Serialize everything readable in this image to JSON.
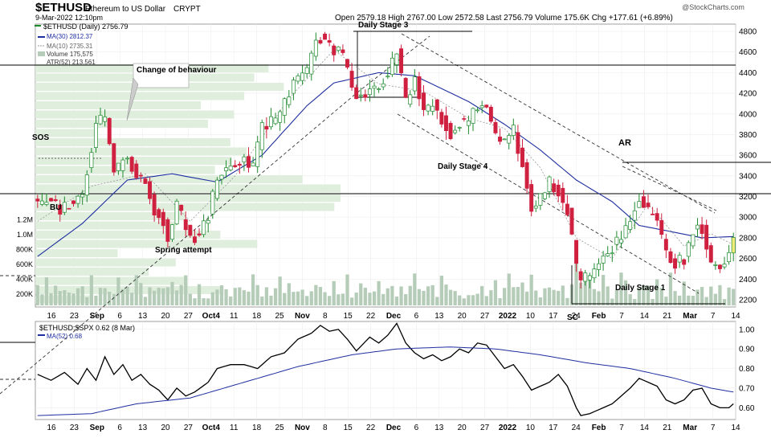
{
  "header": {
    "symbol": "$ETHUSD",
    "name": "Ethereum to US Dollar",
    "exchange": "CRYPT",
    "date": "9-Mar-2022 12:10pm",
    "ohlc": "Open 2579.18  High 2767.00  Low 2572.58  Last 2756.79  Volume 175.6K  Chg +177.61 (+6.89%)",
    "brand": "@StockCharts.com"
  },
  "legend": {
    "price": "$ETHUSD (Daily) 2756.79",
    "ma30": "MA(30) 2812.37",
    "ma10": "MA(10) 2735.31",
    "volume": "Volume 175,575",
    "atr": "ATR(52) 213.561",
    "ratio": "$ETHUSD:$SPX 0.62 (8 Mar)",
    "ratio_ma": "MA(52) 0.68"
  },
  "colors": {
    "up": "#1e8a2e",
    "down": "#d02040",
    "ma30": "#1f2fa0",
    "ma10": "#999999",
    "volume": "#b5ccb8",
    "vbp": "#dfeedd",
    "last": "#f2ec7a"
  },
  "annotations": [
    "Change of behaviour",
    "SOS",
    "BU",
    "Spring attempt",
    "Daily Stage 3",
    "Daily Stage 4",
    "AR",
    "Daily Stage 1",
    "SC"
  ],
  "chart_data": [
    {
      "type": "candlestick",
      "title": "$ETHUSD (Daily)",
      "ylim": [
        2130,
        4870
      ],
      "yticks": [
        2200,
        2400,
        2600,
        2800,
        3000,
        3200,
        3400,
        3600,
        3800,
        4000,
        4200,
        4400,
        4600,
        4800
      ],
      "volume_ticks": [
        "200K",
        "400K",
        "600K",
        "800K",
        "1.0M",
        "1.2M"
      ],
      "x_tick_labels": [
        "16",
        "23",
        "Sep",
        "6",
        "13",
        "20",
        "27",
        "Oct4",
        "11",
        "18",
        "25",
        "Nov",
        "8",
        "15",
        "22",
        "Dec",
        "6",
        "13",
        "20",
        "27",
        "2022",
        "10",
        "17",
        "24",
        "Feb",
        "7",
        "14",
        "21",
        "Mar",
        "7",
        "14"
      ],
      "series": [
        {
          "name": "$ETHUSD",
          "close_anchors": [
            [
              0,
              3150
            ],
            [
              3,
              3180
            ],
            [
              5,
              3050
            ],
            [
              10,
              3230
            ],
            [
              13,
              3900
            ],
            [
              15,
              3970
            ],
            [
              17,
              3420
            ],
            [
              20,
              3600
            ],
            [
              22,
              3380
            ],
            [
              24,
              3350
            ],
            [
              26,
              3050
            ],
            [
              28,
              2970
            ],
            [
              29,
              2750
            ],
            [
              31,
              3130
            ],
            [
              33,
              2900
            ],
            [
              35,
              2800
            ],
            [
              38,
              3000
            ],
            [
              40,
              3400
            ],
            [
              43,
              3500
            ],
            [
              46,
              3560
            ],
            [
              48,
              3500
            ],
            [
              50,
              3870
            ],
            [
              53,
              3950
            ],
            [
              55,
              4100
            ],
            [
              57,
              4300
            ],
            [
              60,
              4400
            ],
            [
              62,
              4750
            ],
            [
              64,
              4740
            ],
            [
              66,
              4630
            ],
            [
              68,
              4550
            ],
            [
              70,
              4250
            ],
            [
              72,
              4150
            ],
            [
              74,
              4280
            ],
            [
              76,
              4250
            ],
            [
              78,
              4400
            ],
            [
              80,
              4620
            ],
            [
              82,
              4100
            ],
            [
              84,
              4380
            ],
            [
              86,
              4000
            ],
            [
              88,
              4110
            ],
            [
              90,
              3950
            ],
            [
              92,
              3800
            ],
            [
              94,
              3920
            ],
            [
              96,
              3930
            ],
            [
              98,
              4080
            ],
            [
              100,
              4050
            ],
            [
              102,
              3800
            ],
            [
              104,
              3720
            ],
            [
              106,
              3850
            ],
            [
              108,
              3500
            ],
            [
              110,
              3100
            ],
            [
              112,
              3200
            ],
            [
              114,
              3350
            ],
            [
              116,
              3250
            ],
            [
              118,
              3050
            ],
            [
              120,
              2500
            ],
            [
              121,
              2400
            ],
            [
              123,
              2450
            ],
            [
              126,
              2600
            ],
            [
              128,
              2700
            ],
            [
              130,
              2800
            ],
            [
              132,
              3000
            ],
            [
              134,
              3200
            ],
            [
              136,
              3050
            ],
            [
              138,
              3000
            ],
            [
              140,
              2650
            ],
            [
              142,
              2550
            ],
            [
              144,
              2600
            ],
            [
              146,
              2880
            ],
            [
              148,
              2900
            ],
            [
              150,
              2570
            ],
            [
              152,
              2550
            ],
            [
              154,
              2650
            ],
            [
              155,
              2750
            ]
          ]
        },
        {
          "name": "MA(30)",
          "anchors": [
            [
              0,
              2620
            ],
            [
              10,
              2940
            ],
            [
              20,
              3360
            ],
            [
              30,
              3420
            ],
            [
              40,
              3340
            ],
            [
              50,
              3600
            ],
            [
              60,
              4080
            ],
            [
              66,
              4300
            ],
            [
              76,
              4400
            ],
            [
              84,
              4370
            ],
            [
              96,
              4120
            ],
            [
              104,
              3900
            ],
            [
              112,
              3650
            ],
            [
              120,
              3360
            ],
            [
              128,
              3150
            ],
            [
              134,
              2920
            ],
            [
              140,
              2870
            ],
            [
              148,
              2800
            ],
            [
              155,
              2812
            ]
          ]
        },
        {
          "name": "MA(10)",
          "anchors": [
            [
              0,
              2960
            ],
            [
              12,
              3300
            ],
            [
              24,
              3420
            ],
            [
              34,
              2960
            ],
            [
              44,
              3400
            ],
            [
              56,
              4150
            ],
            [
              66,
              4620
            ],
            [
              76,
              4290
            ],
            [
              86,
              4220
            ],
            [
              96,
              3960
            ],
            [
              104,
              3860
            ],
            [
              112,
              3480
            ],
            [
              120,
              2800
            ],
            [
              128,
              2600
            ],
            [
              136,
              3130
            ],
            [
              144,
              2720
            ],
            [
              150,
              2840
            ],
            [
              155,
              2735
            ]
          ]
        },
        {
          "name": "$ETHUSD:$SPX",
          "ylim": [
            0.54,
            1.04
          ],
          "yticks": [
            0.6,
            0.7,
            0.8,
            0.9,
            1.0
          ],
          "anchors": [
            [
              0,
              0.77
            ],
            [
              3,
              0.74
            ],
            [
              6,
              0.78
            ],
            [
              9,
              0.72
            ],
            [
              11,
              0.8
            ],
            [
              13,
              0.74
            ],
            [
              15,
              0.86
            ],
            [
              17,
              0.77
            ],
            [
              19,
              0.82
            ],
            [
              21,
              0.74
            ],
            [
              23,
              0.77
            ],
            [
              25,
              0.72
            ],
            [
              27,
              0.69
            ],
            [
              29,
              0.64
            ],
            [
              31,
              0.7
            ],
            [
              33,
              0.66
            ],
            [
              35,
              0.68
            ],
            [
              38,
              0.73
            ],
            [
              40,
              0.8
            ],
            [
              43,
              0.82
            ],
            [
              46,
              0.82
            ],
            [
              49,
              0.8
            ],
            [
              52,
              0.86
            ],
            [
              55,
              0.88
            ],
            [
              58,
              0.95
            ],
            [
              61,
              0.98
            ],
            [
              63,
              1.02
            ],
            [
              65,
              0.99
            ],
            [
              67,
              1.0
            ],
            [
              69,
              0.95
            ],
            [
              71,
              0.89
            ],
            [
              74,
              0.96
            ],
            [
              76,
              0.93
            ],
            [
              78,
              0.97
            ],
            [
              80,
              1.03
            ],
            [
              82,
              0.93
            ],
            [
              84,
              0.88
            ],
            [
              86,
              0.85
            ],
            [
              88,
              0.87
            ],
            [
              90,
              0.84
            ],
            [
              92,
              0.86
            ],
            [
              94,
              0.9
            ],
            [
              96,
              0.88
            ],
            [
              98,
              0.93
            ],
            [
              100,
              0.92
            ],
            [
              102,
              0.86
            ],
            [
              104,
              0.8
            ],
            [
              106,
              0.82
            ],
            [
              108,
              0.76
            ],
            [
              110,
              0.69
            ],
            [
              112,
              0.71
            ],
            [
              114,
              0.73
            ],
            [
              116,
              0.77
            ],
            [
              118,
              0.71
            ],
            [
              120,
              0.6
            ],
            [
              121,
              0.56
            ],
            [
              123,
              0.57
            ],
            [
              126,
              0.6
            ],
            [
              128,
              0.62
            ],
            [
              130,
              0.66
            ],
            [
              132,
              0.7
            ],
            [
              134,
              0.75
            ],
            [
              136,
              0.73
            ],
            [
              138,
              0.71
            ],
            [
              140,
              0.64
            ],
            [
              142,
              0.62
            ],
            [
              144,
              0.64
            ],
            [
              146,
              0.69
            ],
            [
              148,
              0.7
            ],
            [
              150,
              0.62
            ],
            [
              152,
              0.6
            ],
            [
              154,
              0.6
            ],
            [
              155,
              0.62
            ]
          ]
        },
        {
          "name": "MA(52)",
          "anchors": [
            [
              0,
              0.56
            ],
            [
              12,
              0.57
            ],
            [
              22,
              0.62
            ],
            [
              34,
              0.65
            ],
            [
              46,
              0.73
            ],
            [
              58,
              0.81
            ],
            [
              70,
              0.87
            ],
            [
              80,
              0.9
            ],
            [
              92,
              0.91
            ],
            [
              102,
              0.9
            ],
            [
              112,
              0.87
            ],
            [
              122,
              0.83
            ],
            [
              132,
              0.8
            ],
            [
              142,
              0.75
            ],
            [
              150,
              0.7
            ],
            [
              155,
              0.68
            ]
          ]
        }
      ]
    }
  ]
}
